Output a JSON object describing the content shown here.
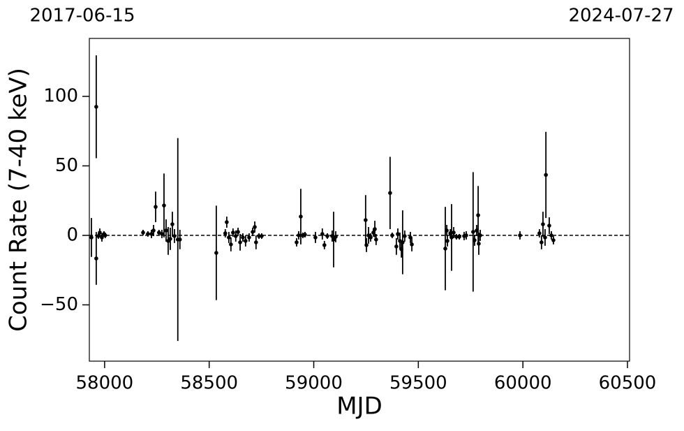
{
  "chart_data": {
    "type": "errorbar",
    "xlabel": "MJD",
    "ylabel": "Count Rate (7-40 keV)",
    "top_labels": [
      "2017-06-15",
      "2024-07-27"
    ],
    "xlim": [
      57927,
      60510
    ],
    "ylim": [
      -90.5,
      141.7
    ],
    "xticks": [
      58000,
      58500,
      59000,
      59500,
      60000,
      60500
    ],
    "yticks": [
      {
        "value": -50,
        "label": "−50"
      },
      0,
      50,
      100
    ],
    "hline": 0,
    "color": "#000000",
    "x": [
      57937,
      57960,
      57960,
      57970,
      57977,
      57987,
      57997,
      58003,
      58184,
      58207,
      58224,
      58234,
      58244,
      58260,
      58274,
      58284,
      58294,
      58304,
      58314,
      58324,
      58334,
      58350,
      58360,
      58534,
      58577,
      58584,
      58594,
      58604,
      58614,
      58627,
      58638,
      58648,
      58661,
      58674,
      58691,
      58708,
      58718,
      58724,
      58738,
      58751,
      58918,
      58928,
      58938,
      58948,
      58958,
      59008,
      59041,
      59051,
      59065,
      59088,
      59095,
      59105,
      59248,
      59252,
      59262,
      59272,
      59285,
      59292,
      59298,
      59365,
      59375,
      59395,
      59402,
      59412,
      59419,
      59425,
      59435,
      59462,
      59469,
      59629,
      59636,
      59639,
      59653,
      59659,
      59669,
      59682,
      59696,
      59719,
      59729,
      59762,
      59769,
      59779,
      59786,
      59789,
      59796,
      59986,
      60079,
      60089,
      60096,
      60106,
      60110,
      60126,
      60136,
      60146
    ],
    "y": [
      -1.5,
      92.5,
      -16.6,
      -0.5,
      2,
      -1.5,
      1,
      0,
      2,
      1,
      1,
      3.5,
      20.5,
      2,
      1,
      21.5,
      3.5,
      -4,
      -2.5,
      8,
      -0.5,
      -3,
      -3,
      -12.6,
      1.5,
      9.5,
      -1.5,
      -6.5,
      2,
      -0.5,
      2.5,
      -5,
      -1.5,
      -4,
      -1.5,
      2.5,
      6,
      -5,
      -0.5,
      -0.5,
      -5,
      0,
      13.5,
      0,
      0.5,
      -1.5,
      1,
      -7,
      -0.5,
      -0.5,
      -3,
      -1,
      11,
      -7,
      0,
      -1.5,
      2,
      4.5,
      -3,
      30.5,
      0,
      -8,
      1,
      -4,
      -10,
      -5,
      -0.5,
      -1.5,
      -6.5,
      -9.5,
      3.5,
      -4,
      1.5,
      -1.5,
      2,
      -1,
      -1,
      -0.5,
      0,
      2.5,
      -3.5,
      3.5,
      14.5,
      -6,
      0,
      0,
      1.5,
      -5,
      8,
      -1.5,
      43.5,
      7,
      0,
      -3.5
    ],
    "yerr": [
      14,
      37,
      19,
      2,
      3,
      3,
      2,
      2,
      2,
      2,
      3,
      4,
      11,
      2,
      3,
      23,
      8,
      10,
      8,
      9,
      5,
      73,
      7,
      34,
      3,
      4,
      4,
      5,
      3,
      4,
      3,
      6,
      3,
      4,
      3,
      3,
      4,
      5,
      2,
      2,
      3,
      3,
      20,
      2,
      2,
      4,
      4,
      3,
      2,
      4,
      20,
      4,
      18,
      5,
      6,
      3,
      3,
      6,
      4,
      26,
      2,
      6,
      4,
      6,
      6,
      23,
      4,
      4,
      5,
      30,
      4,
      4,
      3,
      24,
      4,
      2,
      2,
      3,
      3,
      43,
      4,
      4,
      21,
      8,
      4,
      3,
      3,
      5,
      9,
      6,
      31,
      6,
      3,
      3
    ]
  }
}
